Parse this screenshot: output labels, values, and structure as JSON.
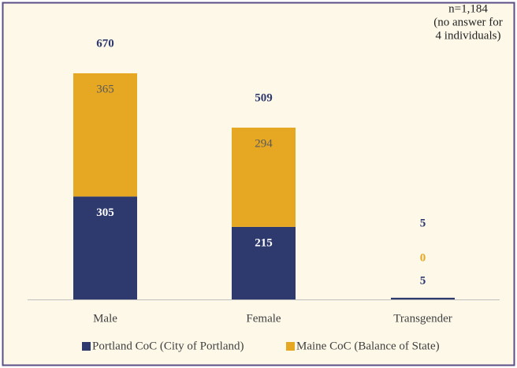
{
  "chart_data": {
    "type": "stacked_bar",
    "categories": [
      "Male",
      "Female",
      "Transgender"
    ],
    "series": [
      {
        "name": "Portland CoC (City of Portland)",
        "color": "#2e3a6e",
        "values": [
          305,
          215,
          5
        ]
      },
      {
        "name": "Maine CoC (Balance of State)",
        "color": "#e6a823",
        "values": [
          365,
          294,
          0
        ]
      }
    ],
    "totals": [
      670,
      509,
      5
    ],
    "annotation": [
      "n=1,184",
      "(no answer for",
      "4 individuals)"
    ]
  }
}
